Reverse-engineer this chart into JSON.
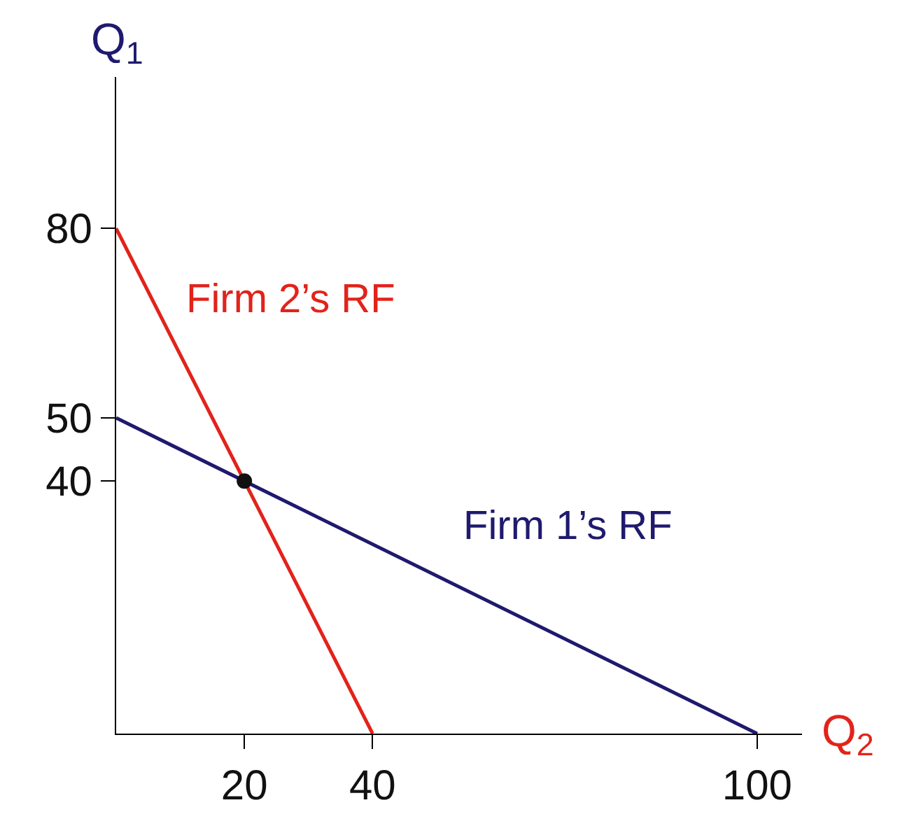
{
  "chart_data": {
    "type": "line",
    "xlabel": "Q$_{2}$",
    "ylabel": "Q$_{1}$",
    "xlim": [
      0,
      107
    ],
    "ylim": [
      0,
      104
    ],
    "xticks": [
      20,
      40,
      100
    ],
    "yticks": [
      40,
      50,
      80
    ],
    "legend": false,
    "marker": "none",
    "line_style": "solid",
    "series": [
      {
        "name": "Firm 2’s RF",
        "color": "#e2231a",
        "x": [
          0,
          40
        ],
        "values": [
          80,
          0
        ]
      },
      {
        "name": "Firm 1’s RF",
        "color": "#1f1a6e",
        "x": [
          0,
          100
        ],
        "values": [
          50,
          0
        ]
      },
      {
        "type": "scatter",
        "marker": "circle",
        "color": "#111111",
        "x": [
          20
        ],
        "values": [
          40
        ]
      }
    ]
  }
}
